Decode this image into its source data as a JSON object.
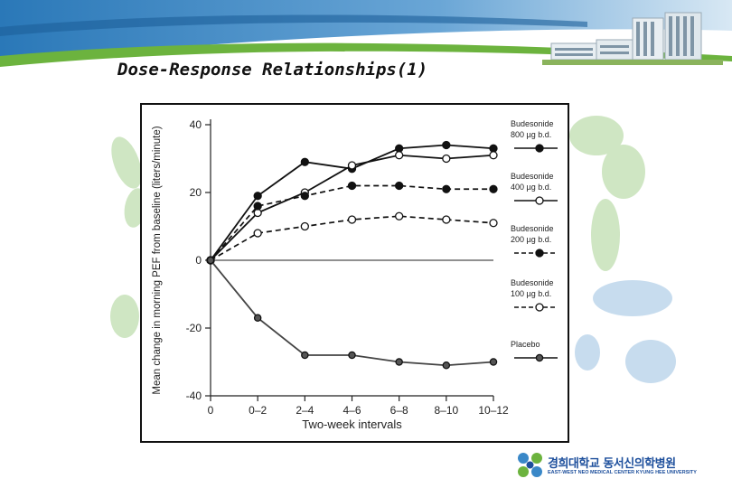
{
  "slide": {
    "title": "Dose-Response Relationships(1)"
  },
  "logo": {
    "name": "경희대학교 동서신의학병원",
    "subtitle": "EAST-WEST NEO MEDICAL CENTER KYUNG HEE UNIVERSITY"
  },
  "colors": {
    "banner_blue": "#1e74b8",
    "banner_green": "#6cb33e",
    "decor_green": "#cfe6c3",
    "decor_blue": "#c7dcee",
    "logo_blue": "#1d4f9c",
    "ink": "#111111"
  },
  "chart_data": {
    "type": "line",
    "xlabel": "Two-week intervals",
    "ylabel": "Mean change in morning PEF from baseline (liters/minute)",
    "categories": [
      "0",
      "0–2",
      "2–4",
      "4–6",
      "6–8",
      "8–10",
      "10–12"
    ],
    "yticks": [
      "40",
      "20",
      "0",
      "-20",
      "-40"
    ],
    "ylim": [
      -40,
      40
    ],
    "grid": false,
    "legend_position": "right",
    "series": [
      {
        "name": "Budesonide 800 µg b.d.",
        "label_line1": "Budesonide",
        "label_line2": "800 µg b.d.",
        "marker": "filled",
        "line": "solid",
        "values": [
          0,
          19,
          29,
          27,
          33,
          34,
          33
        ]
      },
      {
        "name": "Budesonide 400 µg b.d.",
        "label_line1": "Budesonide",
        "label_line2": "400 µg b.d.",
        "marker": "open",
        "line": "solid",
        "values": [
          0,
          14,
          20,
          28,
          31,
          30,
          31
        ]
      },
      {
        "name": "Budesonide 200 µg b.d.",
        "label_line1": "Budesonide",
        "label_line2": "200 µg b.d.",
        "marker": "filled",
        "line": "dashed",
        "values": [
          0,
          16,
          19,
          22,
          22,
          21,
          21
        ]
      },
      {
        "name": "Budesonide 100 µg b.d.",
        "label_line1": "Budesonide",
        "label_line2": "100 µg b.d.",
        "marker": "open",
        "line": "dashed",
        "values": [
          0,
          8,
          10,
          12,
          13,
          12,
          11
        ]
      },
      {
        "name": "Placebo",
        "label_line1": "Placebo",
        "label_line2": "",
        "marker": "gray",
        "line": "solid",
        "values": [
          0,
          -17,
          -28,
          -28,
          -30,
          -31,
          -30
        ]
      }
    ]
  }
}
